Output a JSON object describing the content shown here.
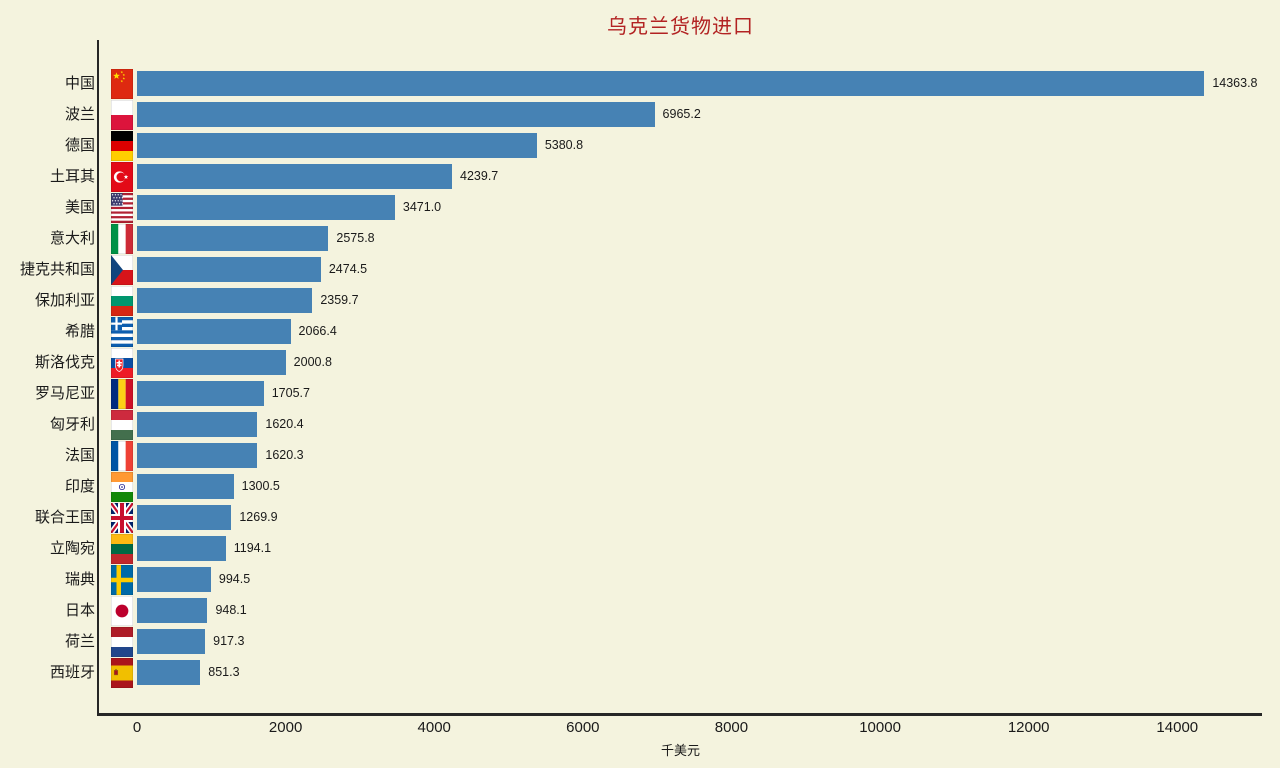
{
  "chart_data": {
    "type": "bar",
    "orientation": "horizontal",
    "title": "乌克兰货物进口",
    "xlabel": "千美元",
    "categories": [
      "中国",
      "波兰",
      "德国",
      "土耳其",
      "美国",
      "意大利",
      "捷克共和国",
      "保加利亚",
      "希腊",
      "斯洛伐克",
      "罗马尼亚",
      "匈牙利",
      "法国",
      "印度",
      "联合王国",
      "立陶宛",
      "瑞典",
      "日本",
      "荷兰",
      "西班牙"
    ],
    "values": [
      14363.8,
      6965.2,
      5380.8,
      4239.7,
      3471.0,
      2575.8,
      2474.5,
      2359.7,
      2066.4,
      2000.8,
      1705.7,
      1620.4,
      1620.3,
      1300.5,
      1269.9,
      1194.1,
      994.5,
      948.1,
      917.3,
      851.3
    ],
    "value_labels": [
      "14363.8",
      "6965.2",
      "5380.8",
      "4239.7",
      "3471.0",
      "2575.8",
      "2474.5",
      "2359.7",
      "2066.4",
      "2000.8",
      "1705.7",
      "1620.4",
      "1620.3",
      "1300.5",
      "1269.9",
      "1194.1",
      "994.5",
      "948.1",
      "917.3",
      "851.3"
    ],
    "flags": [
      "china",
      "poland",
      "germany",
      "turkey",
      "usa",
      "italy",
      "czechia",
      "bulgaria",
      "greece",
      "slovakia",
      "romania",
      "hungary",
      "france",
      "india",
      "uk",
      "lithuania",
      "sweden",
      "japan",
      "netherlands",
      "spain"
    ],
    "xticks": [
      0,
      2000,
      4000,
      6000,
      8000,
      10000,
      12000,
      14000
    ],
    "xlim": [
      0,
      15140
    ],
    "grid": false,
    "legend": null,
    "colors": {
      "bar": "#4682b4",
      "background": "#f4f3de",
      "title": "#b22222",
      "axis": "#262626",
      "text": "#1a1a1a"
    }
  }
}
